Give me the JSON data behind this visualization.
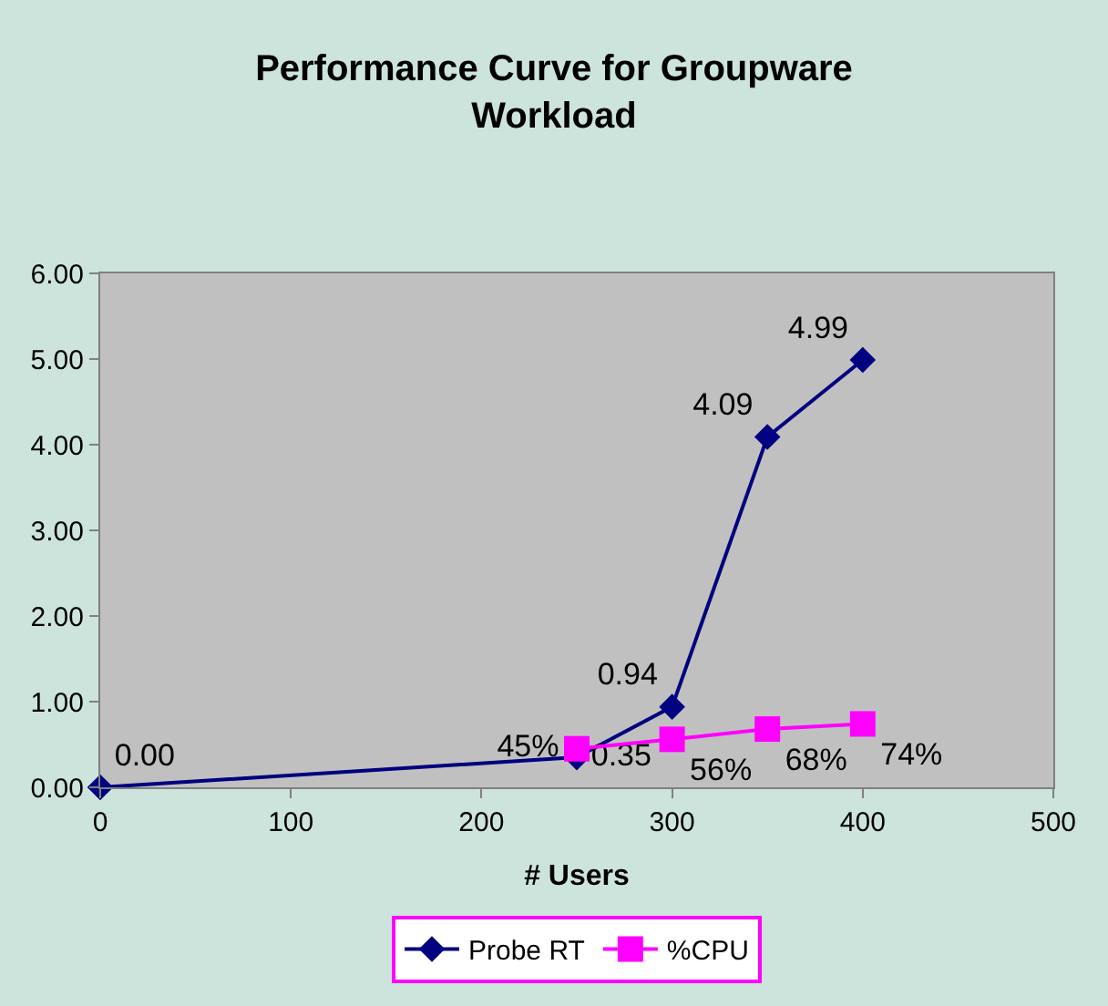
{
  "chart_data": {
    "type": "line",
    "title": "Performance Curve for Groupware Workload",
    "xlabel": "# Users",
    "xlim": [
      0,
      500
    ],
    "xticks": [
      0,
      100,
      200,
      300,
      400,
      500
    ],
    "ylim": [
      0,
      6
    ],
    "yticks": [
      {
        "value": 0,
        "label": "0.00"
      },
      {
        "value": 1,
        "label": "1.00"
      },
      {
        "value": 2,
        "label": "2.00"
      },
      {
        "value": 3,
        "label": "3.00"
      },
      {
        "value": 4,
        "label": "4.00"
      },
      {
        "value": 5,
        "label": "5.00"
      },
      {
        "value": 6,
        "label": "6.00"
      }
    ],
    "series": [
      {
        "name": "Probe RT",
        "color": "#000080",
        "marker": "diamond",
        "x": [
          0,
          250,
          300,
          350,
          400
        ],
        "values": [
          0.0,
          0.35,
          0.94,
          4.09,
          4.99
        ],
        "value_labels": [
          "0.00",
          "0.35",
          "0.94",
          "4.09",
          "4.99"
        ]
      },
      {
        "name": "%CPU",
        "color": "#ff00ff",
        "marker": "square",
        "x": [
          250,
          300,
          350,
          400
        ],
        "values": [
          0.45,
          0.56,
          0.68,
          0.74
        ],
        "value_labels": [
          "45%",
          "56%",
          "68%",
          "74%"
        ]
      }
    ],
    "grid": false,
    "legend": "bottom"
  }
}
